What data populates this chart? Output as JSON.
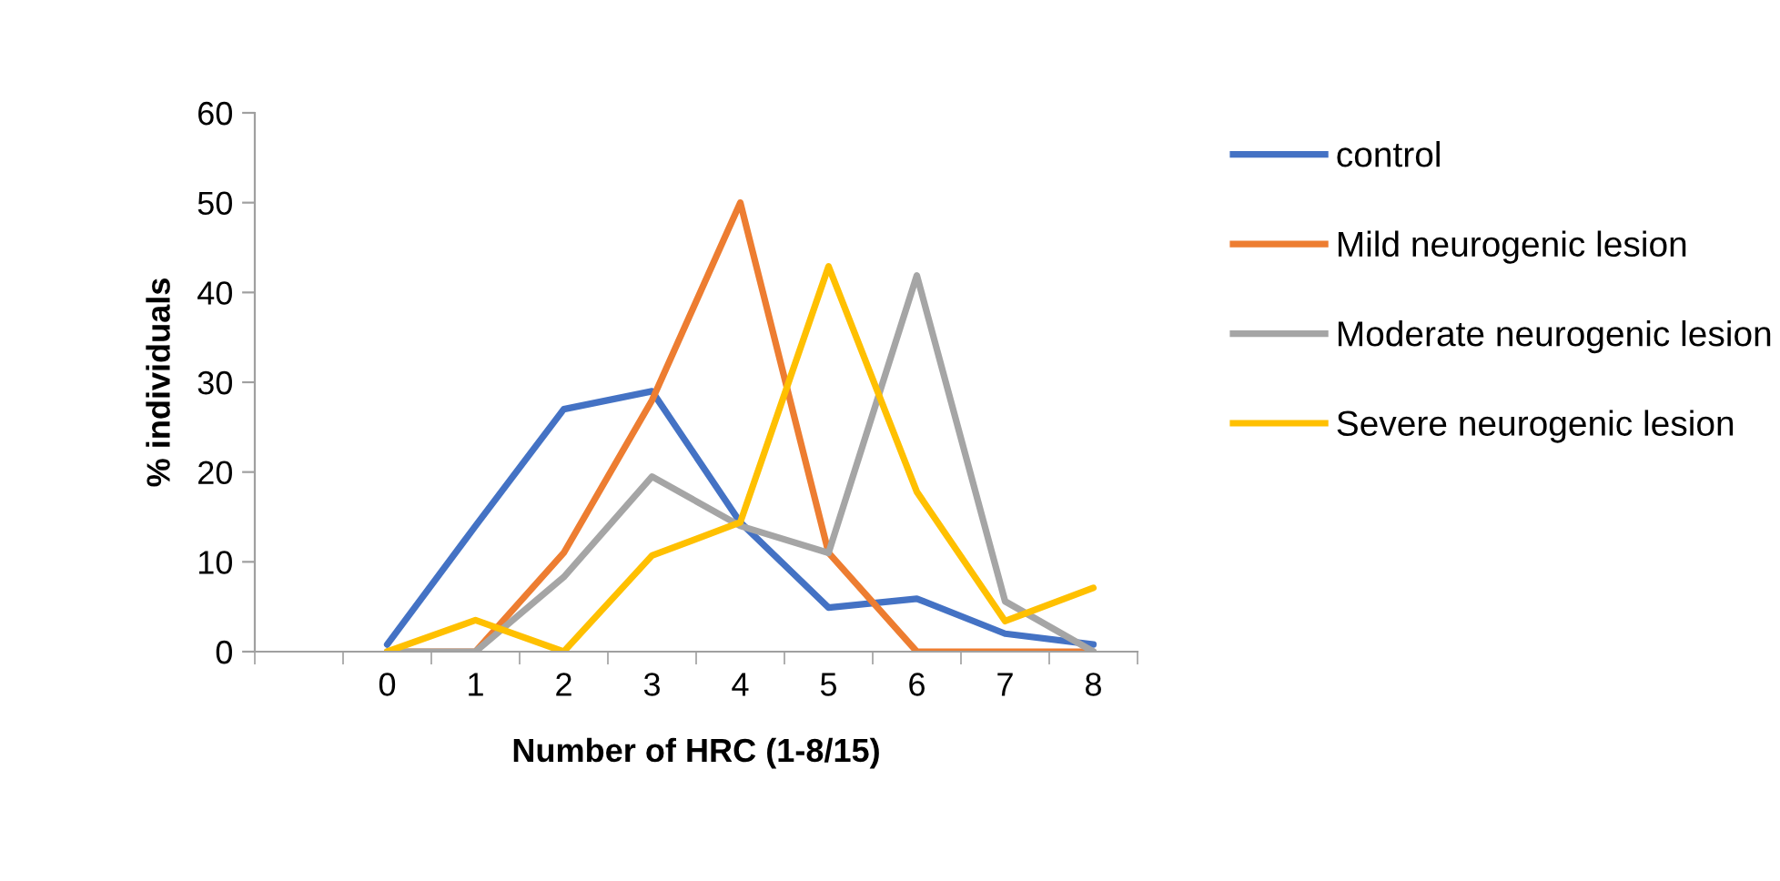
{
  "chart_data": {
    "type": "line",
    "xlabel": "Number of HRC (1-8/15)",
    "ylabel": "% individuals",
    "categories": [
      null,
      "0",
      "1",
      "2",
      "3",
      "4",
      "5",
      "6",
      "7",
      "8"
    ],
    "ylim": [
      0,
      60
    ],
    "yticks": [
      0,
      10,
      20,
      30,
      40,
      50,
      60
    ],
    "grid": false,
    "legend": "right",
    "marker": "none",
    "series": [
      {
        "name": "control",
        "color": "#4472c4",
        "values": [
          null,
          0.8,
          14,
          27,
          29,
          14.4,
          4.9,
          5.9,
          2,
          0.8
        ]
      },
      {
        "name": "Mild neurogenic lesion",
        "color": "#ed7d31",
        "values": [
          null,
          0,
          0,
          11,
          28,
          50,
          11,
          0,
          0,
          0
        ]
      },
      {
        "name": "Moderate neurogenic lesion",
        "color": "#a5a5a5",
        "values": [
          null,
          0,
          0,
          8.3,
          19.5,
          14,
          11,
          41.9,
          5.6,
          0
        ]
      },
      {
        "name": "Severe neurogenic lesion",
        "color": "#ffc000",
        "values": [
          null,
          0,
          3.5,
          0,
          10.7,
          14.4,
          42.9,
          17.8,
          3.4,
          7.1
        ]
      }
    ]
  }
}
